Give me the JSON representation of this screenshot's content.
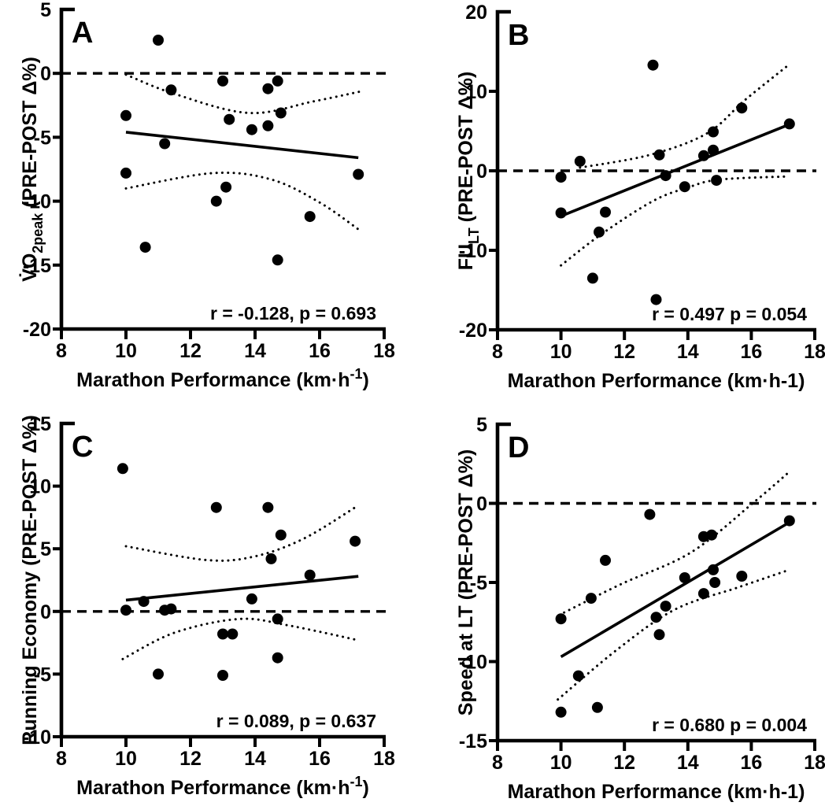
{
  "figure": {
    "background": "#ffffff",
    "ink_color": "#000000",
    "marker": "filled-circle",
    "panel_count": 4
  },
  "chart_data": [
    {
      "panel_label": "A",
      "type": "scatter",
      "xlabel": "Marathon Performance (km·h⁻¹)",
      "ylabel": "V̇O2peak (PRE-POST Δ%)",
      "xlabel_parts": [
        {
          "t": "Marathon Performance (km·h"
        },
        {
          "t": "-1",
          "style": "sup"
        },
        {
          "t": ")"
        }
      ],
      "ylabel_parts": [
        {
          "t": "V̇O"
        },
        {
          "t": "2peak",
          "style": "sub"
        },
        {
          "t": " (PRE-POST Δ%)"
        }
      ],
      "stats_label": "r = -0.128, p = 0.693",
      "xlim": [
        8,
        18
      ],
      "ylim": [
        -20,
        5
      ],
      "xticks": [
        8,
        10,
        12,
        14,
        16,
        18
      ],
      "yticks": [
        5,
        0,
        -5,
        -10,
        -15,
        -20
      ],
      "zero_line": true,
      "grid": false,
      "points": [
        [
          11.0,
          2.6
        ],
        [
          13.0,
          -0.6
        ],
        [
          14.7,
          -0.6
        ],
        [
          14.4,
          -1.2
        ],
        [
          11.4,
          -1.3
        ],
        [
          14.8,
          -3.1
        ],
        [
          10.0,
          -3.3
        ],
        [
          13.2,
          -3.6
        ],
        [
          14.4,
          -4.1
        ],
        [
          13.9,
          -4.4
        ],
        [
          11.2,
          -5.5
        ],
        [
          10.0,
          -7.8
        ],
        [
          17.2,
          -7.9
        ],
        [
          13.1,
          -8.9
        ],
        [
          12.8,
          -10.0
        ],
        [
          15.7,
          -11.2
        ],
        [
          10.6,
          -13.6
        ],
        [
          14.7,
          -14.6
        ]
      ],
      "regression_line": {
        "x": [
          10.0,
          17.2
        ],
        "y": [
          -4.6,
          -6.6
        ]
      },
      "ci_upper": [
        [
          10.0,
          -0.1
        ],
        [
          11.5,
          -1.6
        ],
        [
          13.8,
          -3.1
        ],
        [
          15.8,
          -2.2
        ],
        [
          17.3,
          -1.4
        ]
      ],
      "ci_lower": [
        [
          10.0,
          -9.0
        ],
        [
          12.7,
          -7.8
        ],
        [
          14.5,
          -8.3
        ],
        [
          16.0,
          -10.1
        ],
        [
          17.2,
          -12.2
        ]
      ]
    },
    {
      "panel_label": "B",
      "type": "scatter",
      "xlabel": "Marathon Performance (km·h-1)",
      "ylabel": "FULT (PRE-POST Δ%)",
      "xlabel_parts": [
        {
          "t": "Marathon Performance (km·h-1)"
        }
      ],
      "ylabel_parts": [
        {
          "t": "FU"
        },
        {
          "t": "LT",
          "style": "sub"
        },
        {
          "t": " (PRE-POST Δ%)"
        }
      ],
      "stats_label": "r = 0.497 p = 0.054",
      "xlim": [
        8,
        18
      ],
      "ylim": [
        -20,
        20
      ],
      "xticks": [
        8,
        10,
        12,
        14,
        16,
        18
      ],
      "yticks": [
        20,
        10,
        0,
        -10,
        -20
      ],
      "zero_line": true,
      "grid": false,
      "points": [
        [
          12.9,
          13.3
        ],
        [
          15.7,
          7.9
        ],
        [
          17.2,
          5.9
        ],
        [
          14.8,
          4.9
        ],
        [
          14.8,
          2.6
        ],
        [
          13.1,
          2.0
        ],
        [
          14.5,
          1.9
        ],
        [
          10.6,
          1.2
        ],
        [
          13.3,
          -0.6
        ],
        [
          10.0,
          -0.8
        ],
        [
          14.9,
          -1.2
        ],
        [
          13.9,
          -2.0
        ],
        [
          11.4,
          -5.2
        ],
        [
          10.0,
          -5.3
        ],
        [
          11.2,
          -7.7
        ],
        [
          11.0,
          -13.5
        ],
        [
          13.0,
          -16.2
        ]
      ],
      "regression_line": {
        "x": [
          10.0,
          17.3
        ],
        "y": [
          -5.7,
          6.0
        ]
      },
      "ci_upper": [
        [
          10.6,
          0.4
        ],
        [
          12.8,
          2.0
        ],
        [
          14.6,
          4.7
        ],
        [
          15.8,
          8.9
        ],
        [
          17.2,
          13.4
        ]
      ],
      "ci_lower": [
        [
          10.0,
          -11.9
        ],
        [
          11.3,
          -7.9
        ],
        [
          12.9,
          -3.8
        ],
        [
          14.0,
          -2.1
        ],
        [
          15.0,
          -1.1
        ],
        [
          17.2,
          -0.7
        ]
      ]
    },
    {
      "panel_label": "C",
      "type": "scatter",
      "xlabel": "Marathon Performance (km·h⁻¹)",
      "ylabel": "Running Economy (PRE-POST Δ%)",
      "xlabel_parts": [
        {
          "t": "Marathon Performance (km·h"
        },
        {
          "t": "-1",
          "style": "sup"
        },
        {
          "t": ")"
        }
      ],
      "ylabel_parts": [
        {
          "t": "Running Economy (PRE-POST Δ%)"
        }
      ],
      "stats_label": "r = 0.089, p = 0.637",
      "xlim": [
        8,
        18
      ],
      "ylim": [
        -10,
        15
      ],
      "xticks": [
        8,
        10,
        12,
        14,
        16,
        18
      ],
      "yticks": [
        15,
        10,
        5,
        0,
        -5,
        -10
      ],
      "zero_line": true,
      "grid": false,
      "points": [
        [
          9.9,
          11.4
        ],
        [
          12.8,
          8.3
        ],
        [
          14.4,
          8.3
        ],
        [
          14.8,
          6.1
        ],
        [
          17.1,
          5.6
        ],
        [
          14.5,
          4.2
        ],
        [
          15.7,
          2.9
        ],
        [
          13.9,
          1.0
        ],
        [
          10.55,
          0.8
        ],
        [
          10.0,
          0.1
        ],
        [
          11.2,
          0.1
        ],
        [
          11.4,
          0.2
        ],
        [
          14.7,
          -0.6
        ],
        [
          13.0,
          -1.8
        ],
        [
          13.3,
          -1.8
        ],
        [
          14.7,
          -3.7
        ],
        [
          11.0,
          -5.0
        ],
        [
          13.0,
          -5.1
        ]
      ],
      "regression_line": {
        "x": [
          10.0,
          17.2
        ],
        "y": [
          0.9,
          2.8
        ]
      },
      "ci_upper": [
        [
          10.0,
          5.2
        ],
        [
          12.5,
          4.1
        ],
        [
          14.0,
          4.4
        ],
        [
          15.5,
          5.8
        ],
        [
          17.1,
          8.3
        ]
      ],
      "ci_lower": [
        [
          9.9,
          -3.8
        ],
        [
          11.5,
          -1.7
        ],
        [
          13.5,
          -0.6
        ],
        [
          15.0,
          -1.1
        ],
        [
          17.2,
          -2.3
        ]
      ]
    },
    {
      "panel_label": "D",
      "type": "scatter",
      "xlabel": "Marathon Performance (km·h-1)",
      "ylabel": "Speed at LT (PRE-POST Δ%)",
      "xlabel_parts": [
        {
          "t": "Marathon Performance (km·h-1)"
        }
      ],
      "ylabel_parts": [
        {
          "t": "Speed at LT (PRE-POST Δ%)"
        }
      ],
      "stats_label": "r = 0.680 p = 0.004",
      "xlim": [
        8,
        18
      ],
      "ylim": [
        -15,
        5
      ],
      "xticks": [
        8,
        10,
        12,
        14,
        16,
        18
      ],
      "yticks": [
        5,
        0,
        -5,
        -10,
        -15
      ],
      "zero_line": true,
      "grid": false,
      "points": [
        [
          12.8,
          -0.7
        ],
        [
          17.2,
          -1.1
        ],
        [
          14.75,
          -2.0
        ],
        [
          14.5,
          -2.1
        ],
        [
          11.4,
          -3.6
        ],
        [
          14.8,
          -4.2
        ],
        [
          15.7,
          -4.6
        ],
        [
          13.9,
          -4.7
        ],
        [
          14.85,
          -5.0
        ],
        [
          14.5,
          -5.7
        ],
        [
          10.95,
          -6.0
        ],
        [
          13.3,
          -6.5
        ],
        [
          13.0,
          -7.2
        ],
        [
          10.0,
          -7.3
        ],
        [
          13.1,
          -8.3
        ],
        [
          10.55,
          -10.9
        ],
        [
          11.15,
          -12.9
        ],
        [
          10.0,
          -13.2
        ]
      ],
      "regression_line": {
        "x": [
          10.0,
          17.2
        ],
        "y": [
          -9.7,
          -1.2
        ]
      },
      "ci_upper": [
        [
          10.1,
          -6.9
        ],
        [
          11.9,
          -5.1
        ],
        [
          14.1,
          -3.1
        ],
        [
          16.1,
          0.1
        ],
        [
          17.2,
          2.0
        ]
      ],
      "ci_lower": [
        [
          9.9,
          -12.4
        ],
        [
          11.8,
          -9.2
        ],
        [
          13.6,
          -6.7
        ],
        [
          15.6,
          -5.3
        ],
        [
          17.2,
          -4.2
        ]
      ]
    }
  ]
}
